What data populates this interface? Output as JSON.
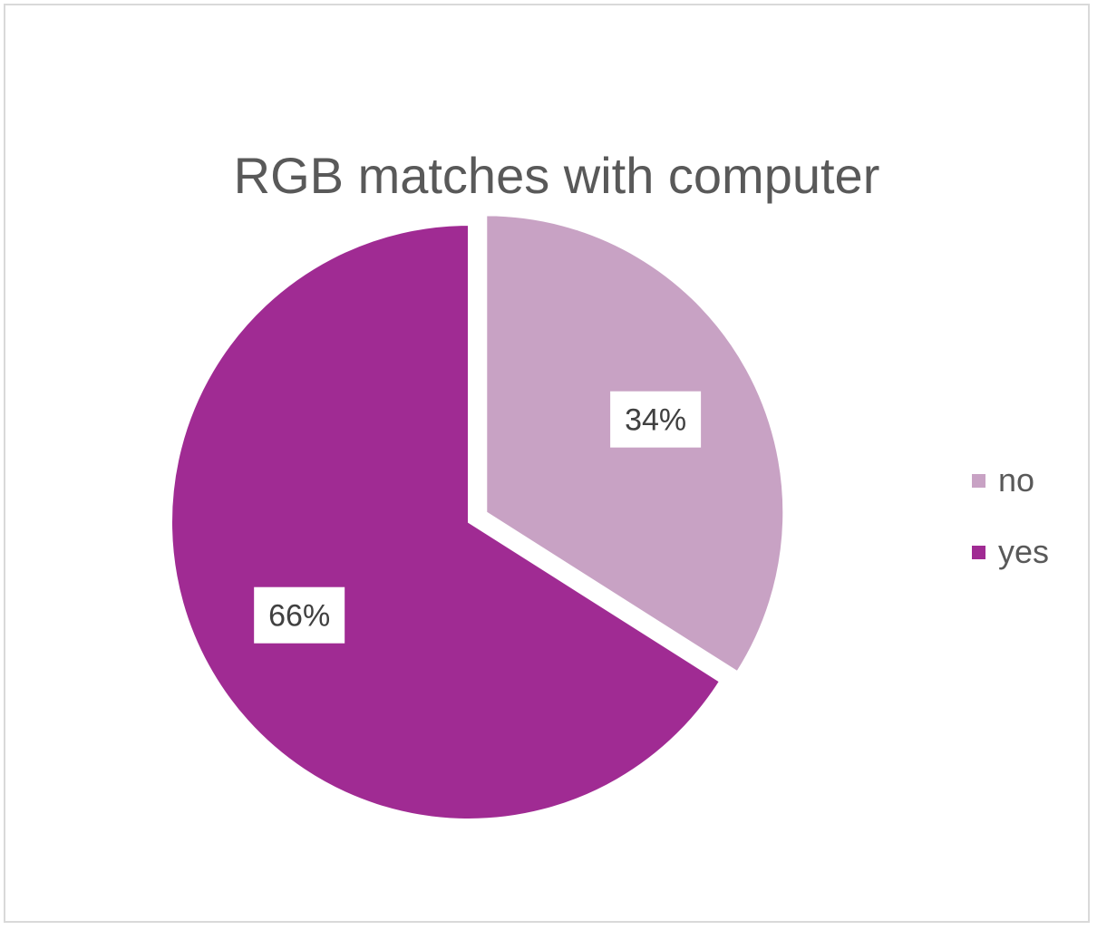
{
  "chart_data": {
    "type": "pie",
    "title": "RGB matches with computer",
    "slices": [
      {
        "name": "no",
        "value": 34,
        "label": "34%",
        "color": "#c8a2c4",
        "exploded": true
      },
      {
        "name": "yes",
        "value": 66,
        "label": "66%",
        "color": "#a02b93",
        "exploded": false
      }
    ],
    "legend": {
      "position": "right"
    }
  }
}
